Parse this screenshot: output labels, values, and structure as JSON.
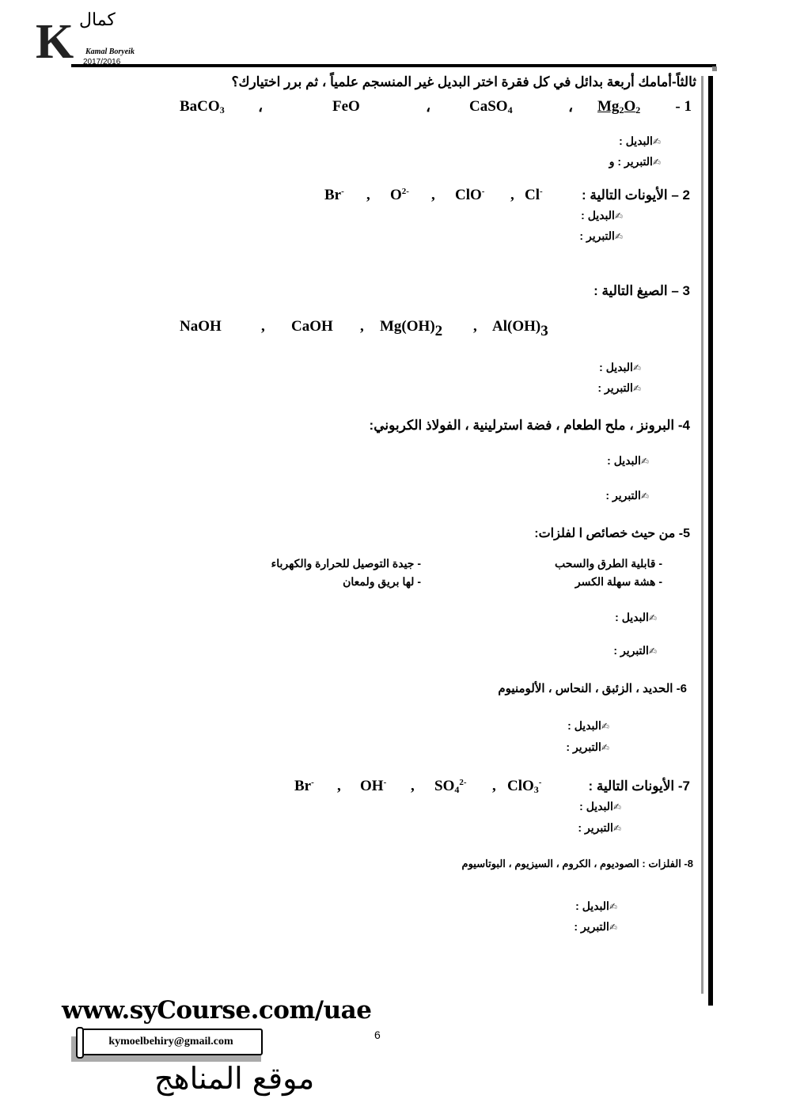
{
  "header": {
    "logo_letter": "K",
    "logo_arabic": "كمال",
    "author": "Kamal Boryeik",
    "year": "2017/2016"
  },
  "title": "ثالثاً-أمامك أربعة بدائل في كل فقرة اختر البديل غير المنسجم علمياً ، ثم برر اختيارك؟",
  "labels": {
    "alt": "البديل :",
    "just": "التبرير :",
    "just1": "التبرير : و",
    "icon": "pencil-icon"
  },
  "q1": {
    "num": "- 1",
    "f1": [
      "Mg",
      "2",
      "O",
      "2"
    ],
    "f2": [
      "CaSO",
      "4"
    ],
    "f3": "FeO",
    "f4": [
      "BaCO",
      "3"
    ],
    "sep": "،"
  },
  "q2": {
    "text": "2 – الأيونات التالية :",
    "ions": [
      [
        "Cl",
        "-"
      ],
      [
        "ClO",
        "-"
      ],
      [
        "O",
        "2-"
      ],
      [
        "Br",
        "-"
      ]
    ],
    "sep": ","
  },
  "q3": {
    "text": "3 – الصيغ التالية :",
    "f": [
      [
        "NaOH"
      ],
      [
        "CaOH"
      ],
      [
        "Mg(OH)",
        "2"
      ],
      [
        "Al(OH)",
        "3"
      ]
    ],
    "sep": ","
  },
  "q4": {
    "text": "4-  البرونز  ، ملح الطعام   ،   فضة استرلينية  ،  الفولاذ الكربوني:"
  },
  "q5": {
    "text": "5- من حيث خصائص ا لفلزات:",
    "props": [
      "-    قابلية الطرق والسحب",
      "-    جيدة التوصيل للحرارة والكهرباء",
      "-    هشة سهلة الكسر",
      "-  لها بريق ولمعان"
    ]
  },
  "q6": {
    "text": "6-   الحديد  ،  الزئبق  ، النحاس    ، الألومنيوم"
  },
  "q7": {
    "text": "7-  الأيونات التالية :",
    "ions": [
      [
        "ClO",
        "3",
        "-"
      ],
      [
        "SO",
        "4",
        "2-"
      ],
      [
        "OH",
        "",
        "-"
      ],
      [
        "Br",
        "",
        "-"
      ]
    ],
    "sep": ","
  },
  "q8": {
    "text": "8- الفلزات : الصوديوم  ،  الكروم   ،  السيزيوم  ،  البوتاسيوم"
  },
  "footer": {
    "site": "www.syCourse.com/uae",
    "page": "6",
    "email": "kymoelbehiry@gmail.com",
    "arabic_site": "موقع المناهج"
  }
}
